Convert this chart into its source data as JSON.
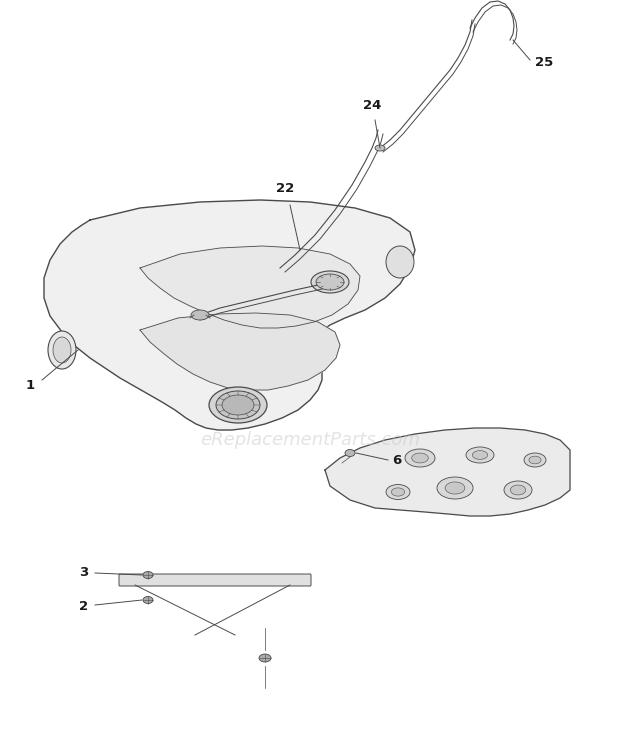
{
  "bg_color": "#ffffff",
  "line_color": "#4a4a4a",
  "label_color": "#1a1a1a",
  "watermark": "eReplacementParts.com",
  "watermark_color": "#c8c8c8",
  "watermark_alpha": 0.5,
  "watermark_fontsize": 13,
  "fig_width": 6.2,
  "fig_height": 7.35,
  "dpi": 100
}
